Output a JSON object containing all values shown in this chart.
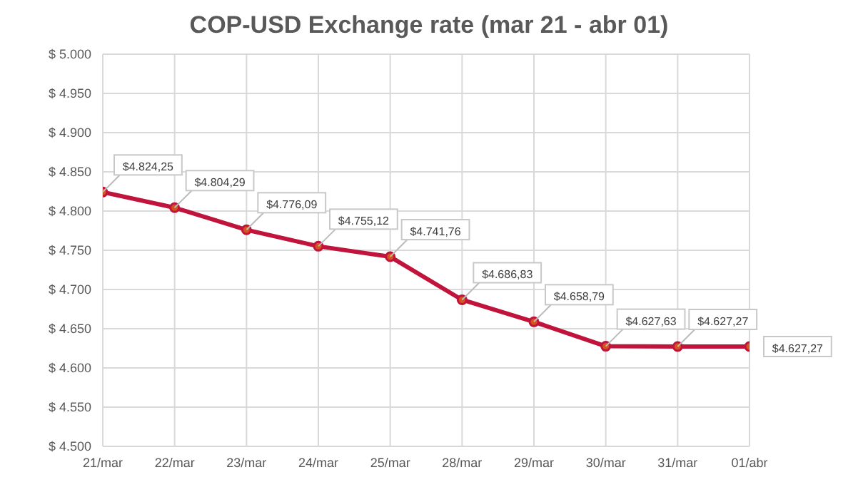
{
  "chart_data": {
    "type": "line",
    "title": "COP-USD Exchange rate (mar 21 - abr 01)",
    "categories": [
      "21/mar",
      "22/mar",
      "23/mar",
      "24/mar",
      "25/mar",
      "28/mar",
      "29/mar",
      "30/mar",
      "31/mar",
      "01/abr"
    ],
    "series": [
      {
        "color": "#c0143c",
        "values": [
          4824.25,
          4804.29,
          4776.09,
          4755.12,
          4741.76,
          4686.83,
          4658.79,
          4627.63,
          4627.27,
          4627.27
        ],
        "value_labels": [
          "$4.824,25",
          "$4.804,29",
          "$4.776,09",
          "$4.755,12",
          "$4.741,76",
          "$4.686,83",
          "$4.658,79",
          "$4.627,63",
          "$4.627,27",
          "$4.627,27"
        ]
      }
    ],
    "ylim": [
      4500,
      5000
    ],
    "yticks": [
      {
        "value": 4500,
        "label": "$ 4.500"
      },
      {
        "value": 4550,
        "label": "$ 4.550"
      },
      {
        "value": 4600,
        "label": "$ 4.600"
      },
      {
        "value": 4650,
        "label": "$ 4.650"
      },
      {
        "value": 4700,
        "label": "$ 4.700"
      },
      {
        "value": 4750,
        "label": "$ 4.750"
      },
      {
        "value": 4800,
        "label": "$ 4.800"
      },
      {
        "value": 4850,
        "label": "$ 4.850"
      },
      {
        "value": 4900,
        "label": "$ 4.900"
      },
      {
        "value": 4950,
        "label": "$ 4.950"
      },
      {
        "value": 5000,
        "label": "$ 5.000"
      }
    ],
    "grid": true,
    "legend": false,
    "marker": "circle",
    "line_style": "solid"
  }
}
